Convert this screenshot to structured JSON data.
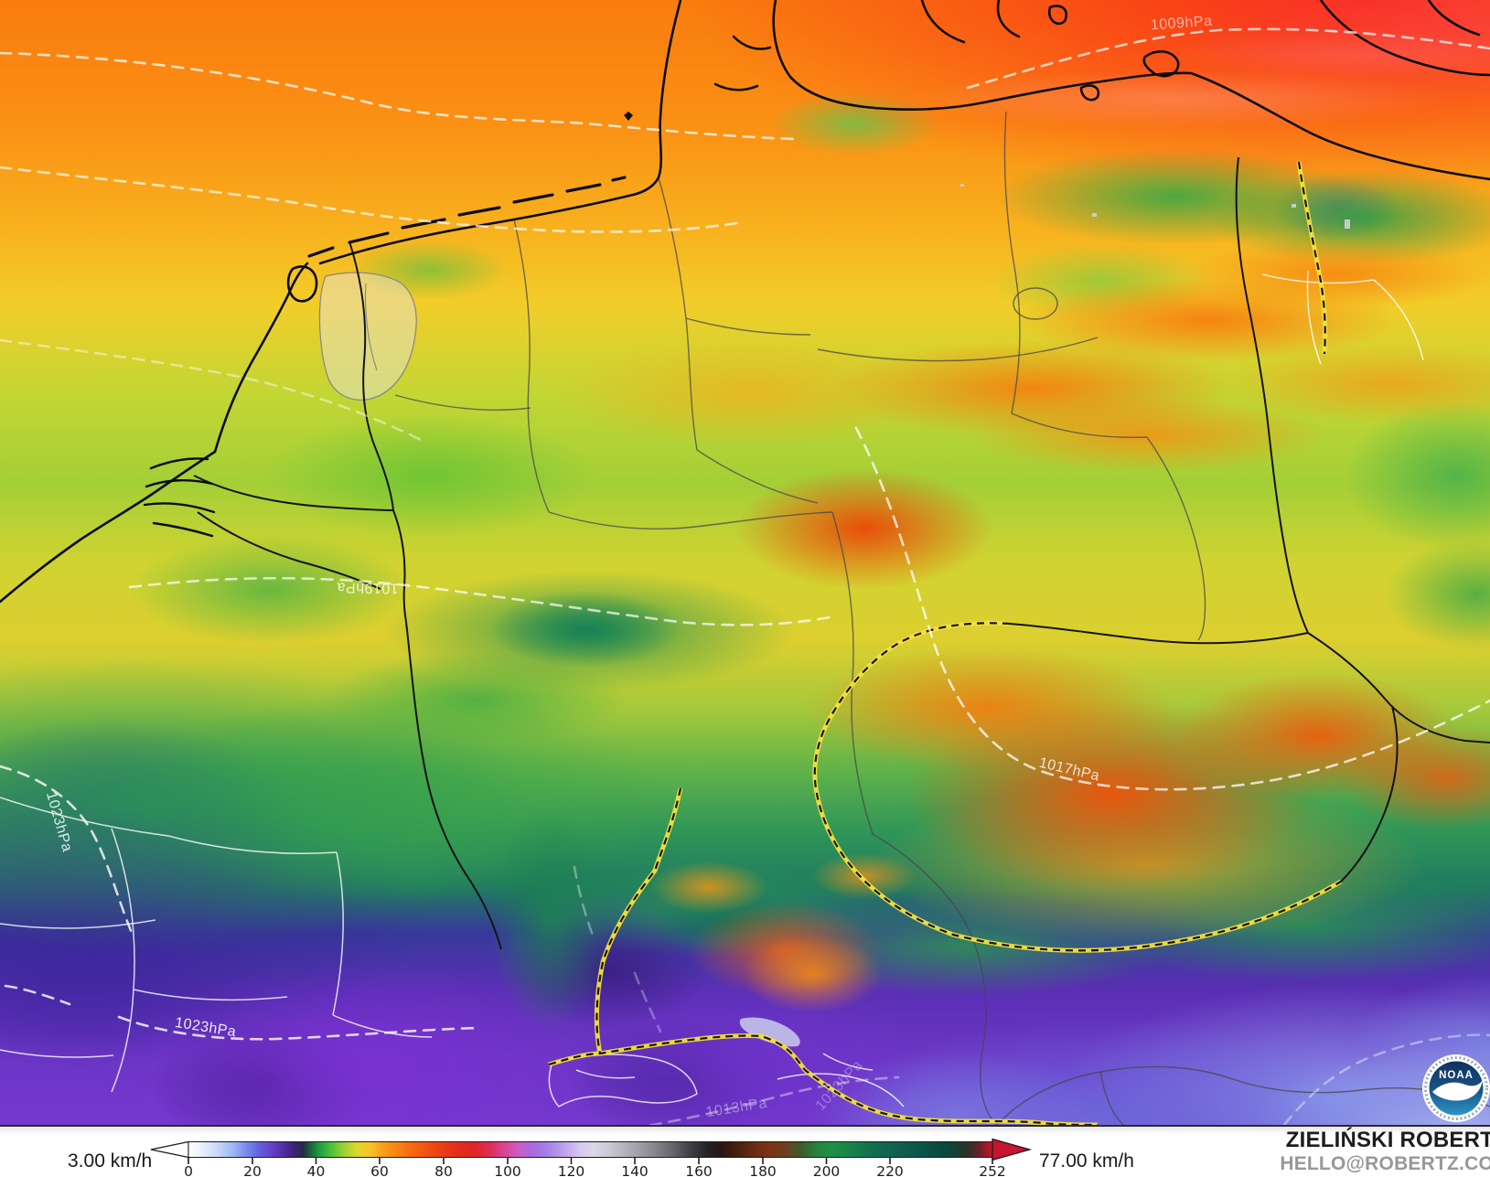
{
  "map": {
    "isobar_labels": [
      {
        "text": "1009hPa"
      },
      {
        "text": "1019hPa"
      },
      {
        "text": "1017hPa"
      },
      {
        "text": "1023hPa"
      },
      {
        "text": "1023hPa"
      },
      {
        "text": "1013hPa"
      },
      {
        "text": "1023hPa"
      }
    ],
    "noaa_badge": {
      "label": "NOAA"
    }
  },
  "legend": {
    "min_label": "3.00 km/h",
    "max_label": "77.00 km/h",
    "ticks": [
      "0",
      "20",
      "40",
      "60",
      "80",
      "100",
      "120",
      "140",
      "160",
      "180",
      "200",
      "220",
      "252"
    ],
    "scale_min": 0,
    "scale_max": 252,
    "arrow_start_color": "#ffffff",
    "arrow_end_color": "#c6152e",
    "colorbar_stops": [
      {
        "v": 0,
        "c": "#ffffff"
      },
      {
        "v": 4,
        "c": "#eaf1fc"
      },
      {
        "v": 9,
        "c": "#c8d9f8"
      },
      {
        "v": 14,
        "c": "#9db6f3"
      },
      {
        "v": 18,
        "c": "#7b8cee"
      },
      {
        "v": 22,
        "c": "#6262dd"
      },
      {
        "v": 26,
        "c": "#6343cb"
      },
      {
        "v": 30,
        "c": "#4f2da4"
      },
      {
        "v": 33,
        "c": "#3b2372"
      },
      {
        "v": 36,
        "c": "#232c47"
      },
      {
        "v": 38,
        "c": "#1c5e3a"
      },
      {
        "v": 41,
        "c": "#219a41"
      },
      {
        "v": 44,
        "c": "#3fbc3c"
      },
      {
        "v": 47,
        "c": "#7aca36"
      },
      {
        "v": 50,
        "c": "#b3d231"
      },
      {
        "v": 53,
        "c": "#e0d52c"
      },
      {
        "v": 57,
        "c": "#f7c325"
      },
      {
        "v": 60,
        "c": "#f9a51d"
      },
      {
        "v": 64,
        "c": "#f88c16"
      },
      {
        "v": 68,
        "c": "#f77312"
      },
      {
        "v": 73,
        "c": "#f25b11"
      },
      {
        "v": 78,
        "c": "#ec4414"
      },
      {
        "v": 84,
        "c": "#e52e1b"
      },
      {
        "v": 90,
        "c": "#e02627"
      },
      {
        "v": 95,
        "c": "#dc2f5e"
      },
      {
        "v": 100,
        "c": "#d84b9e"
      },
      {
        "v": 104,
        "c": "#c75ecb"
      },
      {
        "v": 108,
        "c": "#a96ae2"
      },
      {
        "v": 113,
        "c": "#a684e6"
      },
      {
        "v": 118,
        "c": "#bfa3ec"
      },
      {
        "v": 123,
        "c": "#d8c8f0"
      },
      {
        "v": 127,
        "c": "#dcd6e8"
      },
      {
        "v": 132,
        "c": "#c9c9d3"
      },
      {
        "v": 138,
        "c": "#aeaeb8"
      },
      {
        "v": 145,
        "c": "#8d8d96"
      },
      {
        "v": 152,
        "c": "#64646c"
      },
      {
        "v": 158,
        "c": "#3b3b41"
      },
      {
        "v": 163,
        "c": "#222225"
      },
      {
        "v": 167,
        "c": "#2a1713"
      },
      {
        "v": 172,
        "c": "#48200f"
      },
      {
        "v": 177,
        "c": "#672b12"
      },
      {
        "v": 182,
        "c": "#7c3414"
      },
      {
        "v": 187,
        "c": "#713c1f"
      },
      {
        "v": 192,
        "c": "#3c5c2b"
      },
      {
        "v": 197,
        "c": "#24843c"
      },
      {
        "v": 202,
        "c": "#1d9147"
      },
      {
        "v": 208,
        "c": "#17814a"
      },
      {
        "v": 215,
        "c": "#126d4d"
      },
      {
        "v": 222,
        "c": "#0f614e"
      },
      {
        "v": 230,
        "c": "#0b5348"
      },
      {
        "v": 238,
        "c": "#0a463c"
      },
      {
        "v": 244,
        "c": "#2a3328"
      },
      {
        "v": 248,
        "c": "#6d1f27"
      },
      {
        "v": 252,
        "c": "#c6152e"
      }
    ]
  },
  "attribution": {
    "name": "ZIELIŃSKI ROBERT",
    "email": "HELLO@ROBERTZ.CO"
  }
}
